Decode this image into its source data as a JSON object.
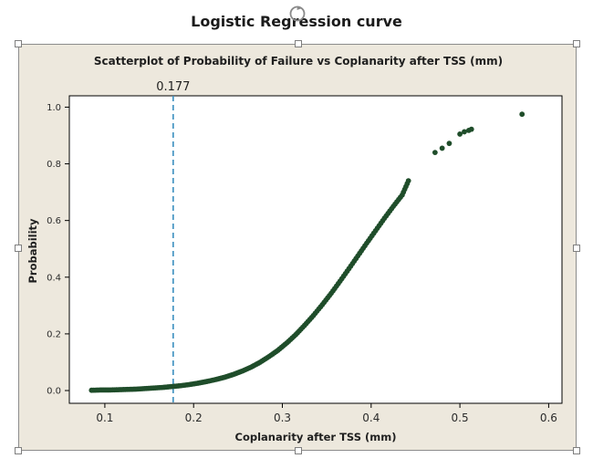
{
  "page": {
    "title": "Logistic Regression curve"
  },
  "chart_data": {
    "type": "scatter",
    "title": "Scatterplot of Probability of Failure vs Coplanarity after TSS (mm)",
    "xlabel": "Coplanarity after TSS (mm)",
    "ylabel": "Probability",
    "xlim": [
      0.06,
      0.615
    ],
    "ylim": [
      -0.045,
      1.04
    ],
    "xticks": [
      0.1,
      0.2,
      0.3,
      0.4,
      0.5,
      0.6
    ],
    "xtick_labels": [
      "0.1",
      "0.2",
      "0.3",
      "0.4",
      "0.5",
      "0.6"
    ],
    "yticks": [
      0.0,
      0.2,
      0.4,
      0.6,
      0.8,
      1.0
    ],
    "ytick_labels": [
      "0.0",
      "0.2",
      "0.4",
      "0.6",
      "0.8",
      "1.0"
    ],
    "grid": false,
    "marker_color": "#1f4d2a",
    "reference_line": {
      "x": 0.177,
      "label": "0.177",
      "color": "#3a8fbf",
      "style": "dashed"
    },
    "series": [
      {
        "x": [
          0.085,
          0.095,
          0.105,
          0.115,
          0.125,
          0.135,
          0.145,
          0.155,
          0.165,
          0.175,
          0.185,
          0.195,
          0.205,
          0.215,
          0.225,
          0.235,
          0.245,
          0.255,
          0.265,
          0.275,
          0.285,
          0.295,
          0.305,
          0.315,
          0.325,
          0.335,
          0.345,
          0.355,
          0.365,
          0.375,
          0.385,
          0.395,
          0.405,
          0.415,
          0.425,
          0.435,
          0.442,
          0.472,
          0.48,
          0.488,
          0.5,
          0.505,
          0.51,
          0.513,
          0.57
        ],
        "y": [
          0.001,
          0.002,
          0.002,
          0.003,
          0.004,
          0.005,
          0.007,
          0.009,
          0.011,
          0.014,
          0.017,
          0.021,
          0.026,
          0.032,
          0.039,
          0.047,
          0.057,
          0.069,
          0.083,
          0.1,
          0.12,
          0.142,
          0.168,
          0.197,
          0.23,
          0.265,
          0.303,
          0.343,
          0.386,
          0.43,
          0.475,
          0.52,
          0.564,
          0.608,
          0.65,
          0.69,
          0.74,
          0.84,
          0.855,
          0.872,
          0.905,
          0.913,
          0.918,
          0.922,
          0.975
        ]
      }
    ]
  }
}
